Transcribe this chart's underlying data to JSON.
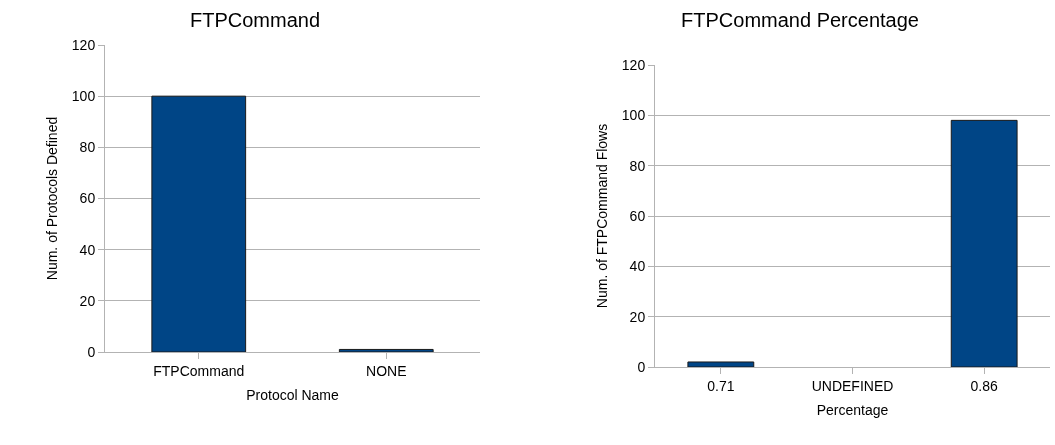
{
  "chart_data": [
    {
      "type": "bar",
      "title": "FTPCommand",
      "xlabel": "Protocol Name",
      "ylabel": "Num. of Protocols Defined",
      "categories": [
        "FTPCommand",
        "NONE"
      ],
      "values": [
        100,
        1
      ],
      "color": "#004586",
      "ylim": [
        0,
        120
      ],
      "yticks": [
        0,
        20,
        40,
        60,
        80,
        100,
        120
      ],
      "grid": "y"
    },
    {
      "type": "bar",
      "title": "FTPCommand Percentage",
      "xlabel": "Percentage",
      "ylabel": "Num. of FTPCommand Flows",
      "categories": [
        "0.71",
        "UNDEFINED",
        "0.86"
      ],
      "values": [
        2,
        null,
        98
      ],
      "color": "#004586",
      "ylim": [
        0,
        120
      ],
      "yticks": [
        0,
        20,
        40,
        60,
        80,
        100,
        120
      ],
      "grid": "y"
    }
  ]
}
